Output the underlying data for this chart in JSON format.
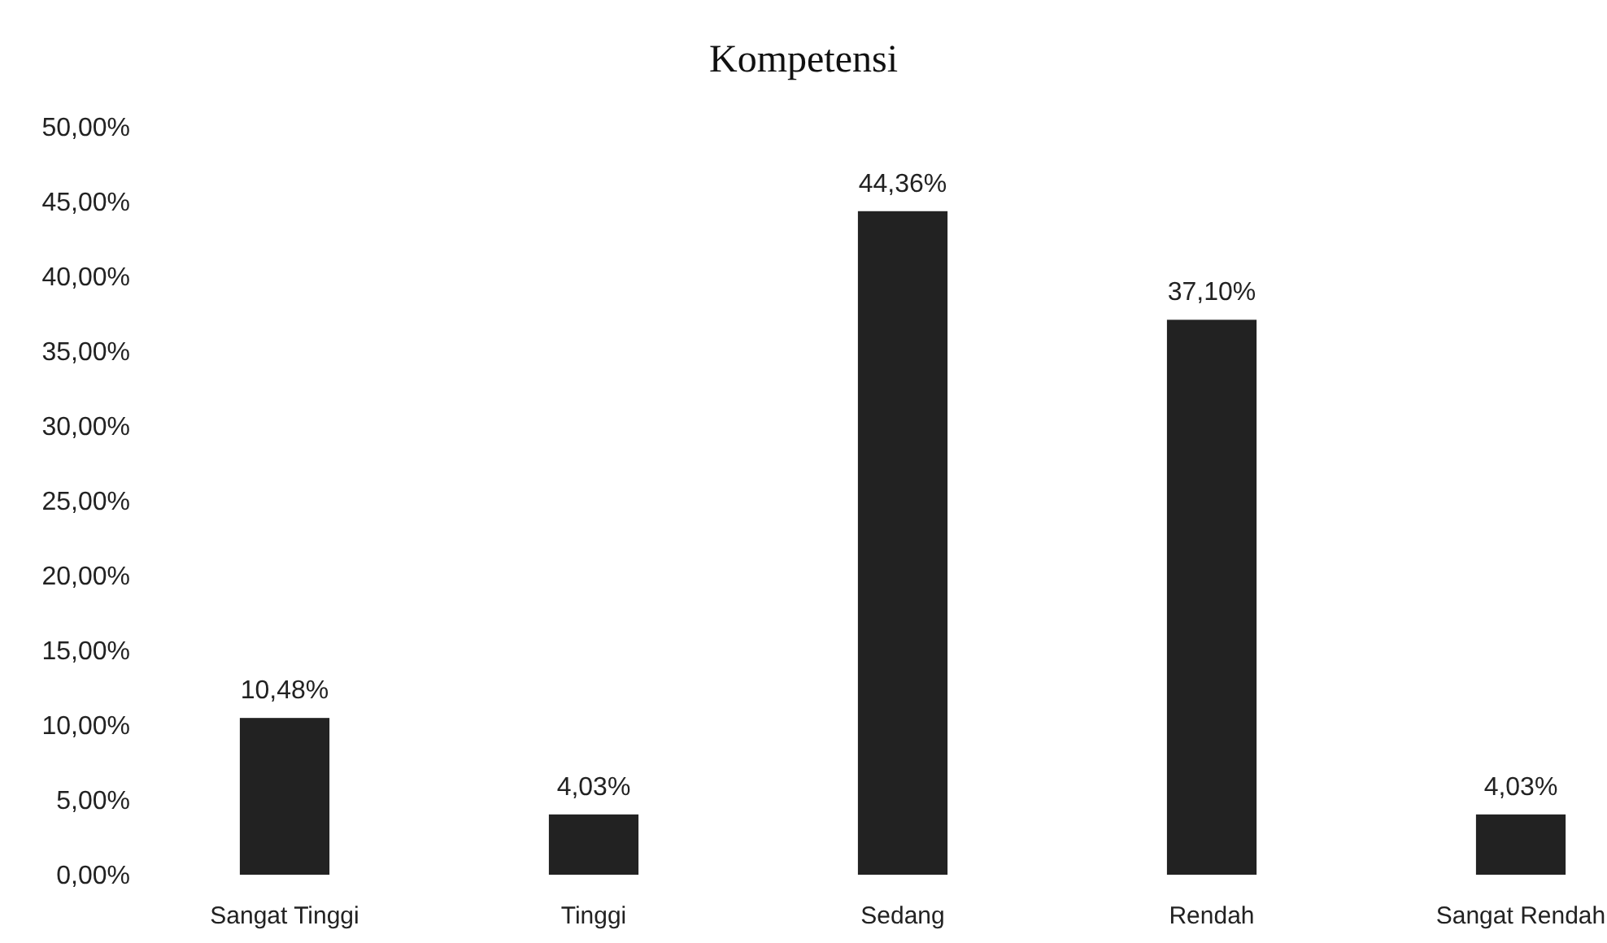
{
  "chart_data": {
    "type": "bar",
    "title": "Kompetensi",
    "categories": [
      "Sangat Tinggi",
      "Tinggi",
      "Sedang",
      "Rendah",
      "Sangat Rendah"
    ],
    "values": [
      10.48,
      4.03,
      44.36,
      37.1,
      4.03
    ],
    "value_labels": [
      "10,48%",
      "4,03%",
      "44,36%",
      "37,10%",
      "4,03%"
    ],
    "color": "#222222",
    "ylim": [
      0,
      50
    ],
    "yticks": [
      {
        "value": 0,
        "label": "0,00%"
      },
      {
        "value": 5,
        "label": "5,00%"
      },
      {
        "value": 10,
        "label": "10,00%"
      },
      {
        "value": 15,
        "label": "15,00%"
      },
      {
        "value": 20,
        "label": "20,00%"
      },
      {
        "value": 25,
        "label": "25,00%"
      },
      {
        "value": 30,
        "label": "30,00%"
      },
      {
        "value": 35,
        "label": "35,00%"
      },
      {
        "value": 40,
        "label": "40,00%"
      },
      {
        "value": 45,
        "label": "45,00%"
      },
      {
        "value": 50,
        "label": "50,00%"
      }
    ]
  }
}
